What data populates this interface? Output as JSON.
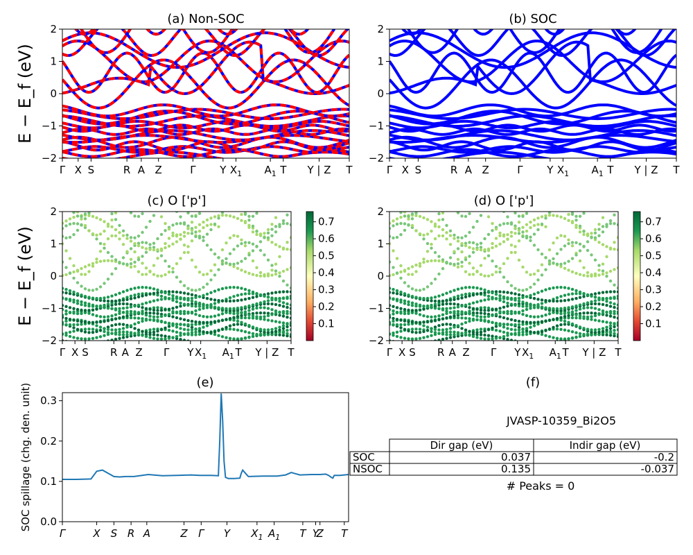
{
  "chart_data": [
    {
      "panel": "a",
      "type": "line",
      "title": "(a) Non-SOC",
      "ylabel": "E − E_f (eV)",
      "ylim": [
        -2,
        2
      ],
      "yticks": [
        "2",
        "1",
        "0",
        "−1",
        "−2"
      ],
      "kpath_ticks": [
        "Γ",
        "X",
        "S",
        "R",
        "A",
        "Z",
        "Γ",
        "Y",
        "X1",
        "A1",
        "T",
        "Y | Z",
        "T"
      ],
      "line_colors": [
        "#ff0000",
        "#0000ff"
      ]
    },
    {
      "panel": "b",
      "type": "line",
      "title": "(b) SOC",
      "ylim": [
        -2,
        2
      ],
      "yticks": [
        "2",
        "1",
        "0",
        "−1",
        "−2"
      ],
      "kpath_ticks": [
        "Γ",
        "X",
        "S",
        "R",
        "A",
        "Z",
        "Γ",
        "Y",
        "X1",
        "A1",
        "T",
        "Y | Z",
        "T"
      ],
      "line_colors": [
        "#0000ff"
      ]
    },
    {
      "panel": "c",
      "type": "scatter",
      "title": "(c)  O ['p']",
      "ylabel": "E − E_f (eV)",
      "ylim": [
        -2,
        2
      ],
      "yticks": [
        "2",
        "1",
        "0",
        "−1",
        "−2"
      ],
      "kpath_ticks": [
        "Γ",
        "X",
        "S",
        "R",
        "A",
        "Z",
        "Γ",
        "Y",
        "X1",
        "A1",
        "T",
        "Y | Z",
        "T"
      ],
      "colorbar": {
        "range": [
          0.0,
          0.76
        ],
        "ticks": [
          "0.7",
          "0.6",
          "0.5",
          "0.4",
          "0.3",
          "0.2",
          "0.1"
        ],
        "colormap": "RdYlGn"
      }
    },
    {
      "panel": "d",
      "type": "scatter",
      "title": "(d) O ['p']",
      "ylim": [
        -2,
        2
      ],
      "yticks": [
        "2",
        "1",
        "0",
        "−1",
        "−2"
      ],
      "kpath_ticks": [
        "Γ",
        "X",
        "S",
        "R",
        "A",
        "Z",
        "Γ",
        "Y",
        "X1",
        "A1",
        "T",
        "Y | Z",
        "T"
      ],
      "colorbar": {
        "range": [
          0.0,
          0.76
        ],
        "ticks": [
          "0.7",
          "0.6",
          "0.5",
          "0.4",
          "0.3",
          "0.2",
          "0.1"
        ],
        "colormap": "RdYlGn"
      }
    },
    {
      "panel": "e",
      "type": "line",
      "title": "(e)",
      "ylabel": "SOC spillage (chg. den. unit)",
      "ylim": [
        0,
        0.32
      ],
      "yticks": [
        "0.0",
        "0.1",
        "0.2",
        "0.3"
      ],
      "kpath_ticks": [
        "Γ",
        "X",
        "S",
        "R",
        "A",
        "Z",
        "Γ",
        "Y",
        "X1",
        "A1",
        "T",
        "Y",
        "Z",
        "T"
      ],
      "color": "#1f77b4",
      "x": [
        0,
        0.05,
        0.1,
        0.12,
        0.14,
        0.16,
        0.18,
        0.2,
        0.22,
        0.25,
        0.3,
        0.35,
        0.4,
        0.45,
        0.48,
        0.5,
        0.52,
        0.545,
        0.55,
        0.555,
        0.56,
        0.565,
        0.57,
        0.58,
        0.6,
        0.62,
        0.625,
        0.63,
        0.64,
        0.65,
        0.7,
        0.75,
        0.78,
        0.8,
        0.81,
        0.83,
        0.87,
        0.9,
        0.92,
        0.93,
        0.94,
        0.945,
        0.95,
        0.97,
        1.0
      ],
      "values": [
        0.105,
        0.105,
        0.106,
        0.125,
        0.128,
        0.12,
        0.112,
        0.111,
        0.112,
        0.112,
        0.117,
        0.114,
        0.115,
        0.116,
        0.115,
        0.115,
        0.115,
        0.114,
        0.2,
        0.318,
        0.25,
        0.15,
        0.11,
        0.107,
        0.107,
        0.108,
        0.12,
        0.128,
        0.12,
        0.112,
        0.113,
        0.113,
        0.116,
        0.122,
        0.12,
        0.116,
        0.117,
        0.117,
        0.118,
        0.115,
        0.11,
        0.108,
        0.115,
        0.115,
        0.117
      ]
    },
    {
      "panel": "f",
      "type": "table",
      "title": "(f)",
      "subtitle": "JVASP-10359_Bi2O5",
      "columns": [
        "",
        "Dir gap (eV)",
        "Indir gap (eV)"
      ],
      "rows": [
        {
          "label": "SOC",
          "dir": "0.037",
          "indir": "-0.2"
        },
        {
          "label": "NSOC",
          "dir": "0.135",
          "indir": "-0.037"
        }
      ],
      "footer": "# Peaks = 0"
    }
  ]
}
